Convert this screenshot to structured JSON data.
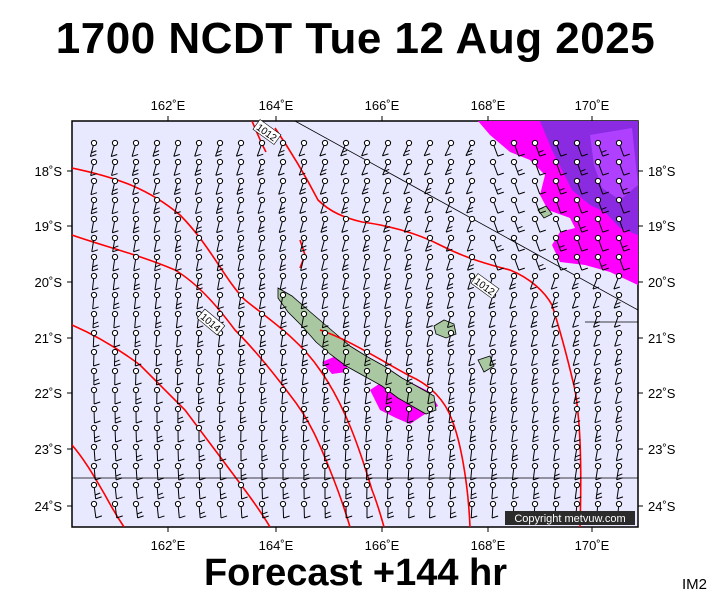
{
  "header": {
    "title": "1700 NCDT Tue 12 Aug 2025"
  },
  "footer": {
    "forecast": "Forecast +144 hr",
    "code": "IM2"
  },
  "map": {
    "copyright": "Copyright metvuw.com",
    "lon_labels": [
      "162˚E",
      "164˚E",
      "166˚E",
      "168˚E",
      "170˚E"
    ],
    "lat_labels": [
      "18˚S",
      "19˚S",
      "20˚S",
      "21˚S",
      "22˚S",
      "23˚S",
      "24˚S"
    ],
    "isobar_labels": [
      "1012",
      "1012",
      "1014"
    ],
    "colors": {
      "ocean": "#e8e8ff",
      "isobar": "#ff0000",
      "rain_light": "#ff00ff",
      "rain_heavy": "#8a2be2",
      "land": "#a9c7a0"
    }
  }
}
